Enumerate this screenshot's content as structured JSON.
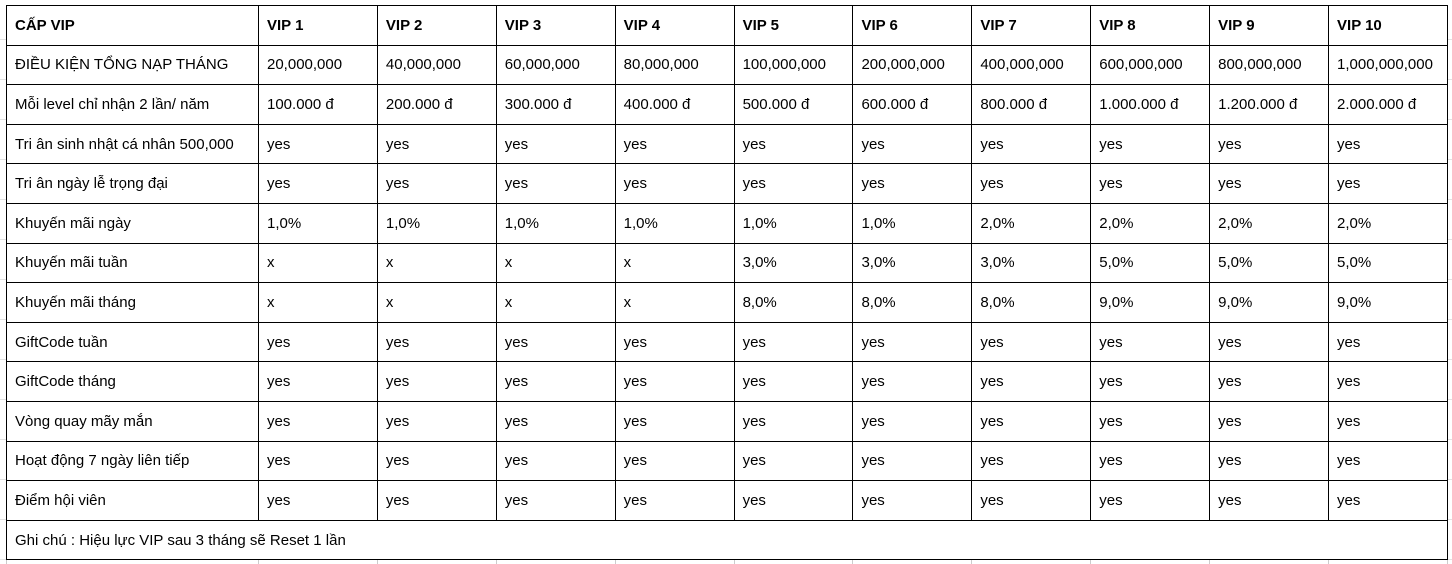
{
  "header": [
    "CẤP VIP",
    "VIP 1",
    "VIP 2",
    "VIP 3",
    "VIP 4",
    "VIP 5",
    "VIP 6",
    "VIP 7",
    "VIP 8",
    "VIP 9",
    "VIP 10"
  ],
  "rows": [
    [
      "ĐIỀU KIỆN TỔNG NẠP THÁNG",
      "20,000,000",
      "40,000,000",
      "60,000,000",
      "80,000,000",
      "100,000,000",
      "200,000,000",
      "400,000,000",
      "600,000,000",
      "800,000,000",
      "1,000,000,000"
    ],
    [
      "Mỗi level chỉ nhận 2 lần/ năm",
      "100.000 đ",
      "200.000 đ",
      "300.000 đ",
      "400.000 đ",
      "500.000 đ",
      "600.000 đ",
      "800.000 đ",
      "1.000.000 đ",
      "1.200.000 đ",
      "2.000.000 đ"
    ],
    [
      "Tri ân sinh nhật cá nhân 500,000",
      "yes",
      "yes",
      "yes",
      "yes",
      "yes",
      "yes",
      "yes",
      "yes",
      "yes",
      "yes"
    ],
    [
      "Tri ân ngày lễ trọng đại",
      "yes",
      "yes",
      "yes",
      "yes",
      "yes",
      "yes",
      "yes",
      "yes",
      "yes",
      "yes"
    ],
    [
      "Khuyến mãi ngày",
      "1,0%",
      "1,0%",
      "1,0%",
      "1,0%",
      "1,0%",
      "1,0%",
      "2,0%",
      "2,0%",
      "2,0%",
      "2,0%"
    ],
    [
      "Khuyến mãi tuần",
      "x",
      "x",
      "x",
      "x",
      "3,0%",
      "3,0%",
      "3,0%",
      "5,0%",
      "5,0%",
      "5,0%"
    ],
    [
      "Khuyến mãi tháng",
      "x",
      "x",
      "x",
      "x",
      "8,0%",
      "8,0%",
      "8,0%",
      "9,0%",
      "9,0%",
      "9,0%"
    ],
    [
      "GiftCode tuần",
      "yes",
      "yes",
      "yes",
      "yes",
      "yes",
      "yes",
      "yes",
      "yes",
      "yes",
      "yes"
    ],
    [
      "GiftCode tháng",
      "yes",
      "yes",
      "yes",
      "yes",
      "yes",
      "yes",
      "yes",
      "yes",
      "yes",
      "yes"
    ],
    [
      "Vòng quay mãy mắn",
      "yes",
      "yes",
      "yes",
      "yes",
      "yes",
      "yes",
      "yes",
      "yes",
      "yes",
      "yes"
    ],
    [
      "Hoạt động 7 ngày liên tiếp",
      "yes",
      "yes",
      "yes",
      "yes",
      "yes",
      "yes",
      "yes",
      "yes",
      "yes",
      "yes"
    ],
    [
      "Điểm hội viên",
      "yes",
      "yes",
      "yes",
      "yes",
      "yes",
      "yes",
      "yes",
      "yes",
      "yes",
      "yes"
    ]
  ],
  "note": "Ghi chú : Hiệu lực VIP sau 3 tháng sẽ Reset 1 lần"
}
